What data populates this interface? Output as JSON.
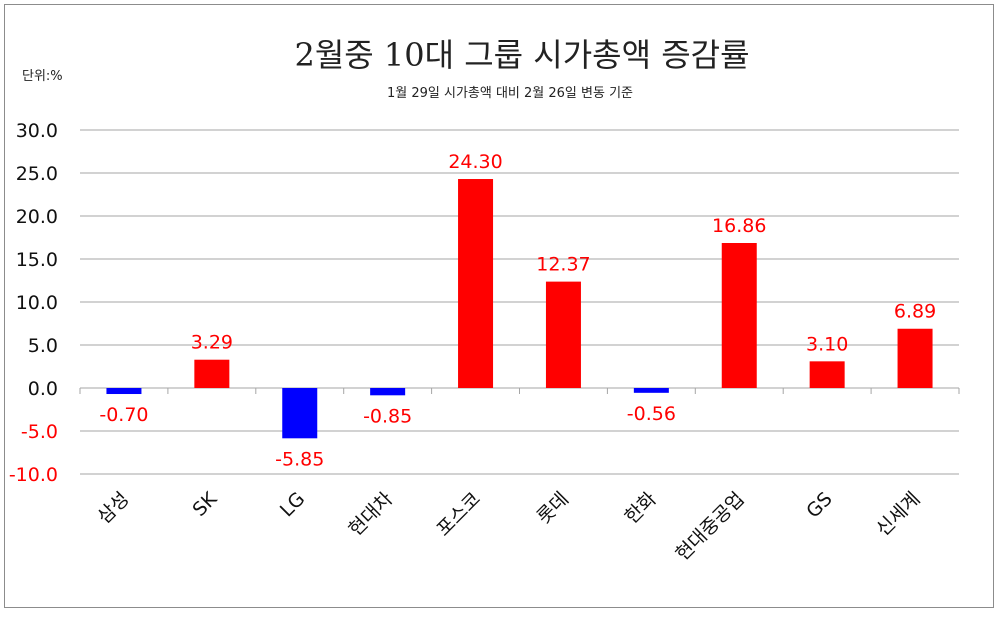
{
  "chart_data": {
    "type": "bar",
    "title": "2월중 10대 그룹 시가총액 증감률",
    "subtitle": "1월 29일 시가총액 대비 2월 26일 변동 기준",
    "unit_label": "단위:%",
    "categories": [
      "삼성",
      "SK",
      "LG",
      "현대차",
      "포스코",
      "롯데",
      "한화",
      "현대중공업",
      "GS",
      "신세계"
    ],
    "values": [
      -0.7,
      3.29,
      -5.85,
      -0.85,
      24.3,
      12.37,
      -0.56,
      16.86,
      3.1,
      6.89
    ],
    "data_labels": [
      "-0.70",
      "3.29",
      "-5.85",
      "-0.85",
      "24.30",
      "12.37",
      "-0.56",
      "16.86",
      "3.10",
      "6.89"
    ],
    "ylim": [
      -10,
      30
    ],
    "yticks": [
      "30.0",
      "25.0",
      "20.0",
      "15.0",
      "10.0",
      "5.0",
      "0.0",
      "-5.0",
      "-10.0"
    ],
    "ytick_values": [
      30,
      25,
      20,
      15,
      10,
      5,
      0,
      -5,
      -10
    ],
    "grid": true,
    "legend": "none",
    "colors": {
      "positive_bar": "#ff0000",
      "negative_bar": "#0000ff",
      "positive_tick": "#111111",
      "negative_tick": "#ff0000",
      "label": "#ff0000",
      "grid": "#a6a6a6"
    }
  }
}
